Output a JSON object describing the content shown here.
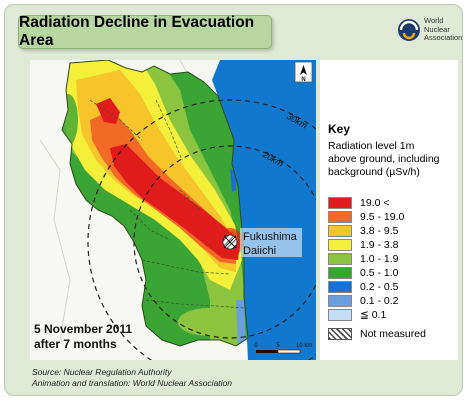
{
  "header": {
    "title": "Radiation Decline in Evacuation Area",
    "logo_lines": [
      "World",
      "Nuclear",
      "Association"
    ]
  },
  "map": {
    "compass_label": "N",
    "ring_labels": [
      "30km",
      "20km"
    ],
    "plant_label_lines": [
      "Fukushima",
      "Daiichi"
    ],
    "date_lines": [
      "5 November 2011",
      "after 7 months"
    ],
    "scale": {
      "labels": [
        "0",
        "5",
        "10 km"
      ]
    },
    "colors": {
      "sea": "#1278ce",
      "land_outside": "#ffffff"
    }
  },
  "key": {
    "title": "Key",
    "description_lines": [
      "Radiation level 1m",
      "above ground, including",
      "background (µSv/h)"
    ],
    "levels": [
      {
        "label": "19.0 <",
        "color": "#e01b1b"
      },
      {
        "label": "9.5 - 19.0",
        "color": "#f26a25"
      },
      {
        "label": "3.8 - 9.5",
        "color": "#f6c42b"
      },
      {
        "label": "1.9 - 3.8",
        "color": "#f3ef3a"
      },
      {
        "label": "1.0 - 1.9",
        "color": "#8bc43f"
      },
      {
        "label": "0.5 - 1.0",
        "color": "#3aa535"
      },
      {
        "label": "0.2 - 0.5",
        "color": "#1b6fd1"
      },
      {
        "label": "0.1 - 0.2",
        "color": "#6b9edf"
      },
      {
        "label": "≦ 0.1",
        "color": "#c7ddf6"
      }
    ],
    "not_measured_label": "Not measured"
  },
  "source": {
    "line1": "Source: Nuclear Regulation Authority",
    "line2": "Animation and translation: World Nuclear Association"
  }
}
